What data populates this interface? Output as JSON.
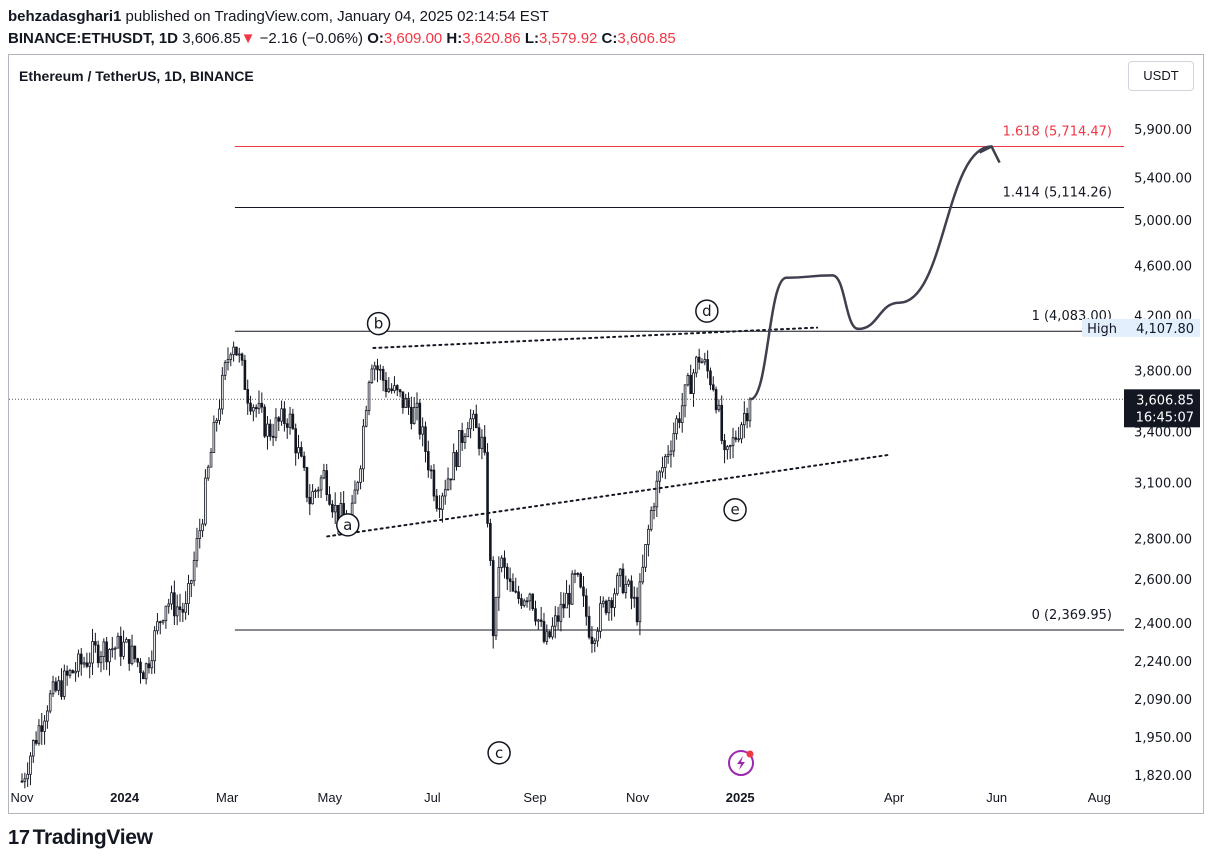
{
  "header": {
    "user": "behzadasghari1",
    "published_text": "published on TradingView.com, January 04, 2025 02:14:54 EST",
    "symbol": "BINANCE:ETHUSDT, 1D",
    "last": "3,606.85",
    "down_arrow": "▼",
    "change": "−2.16 (−0.06%)",
    "o_label": "O:",
    "o_value": "3,609.00",
    "h_label": "H:",
    "h_value": "3,620.86",
    "l_label": "L:",
    "l_value": "3,579.92",
    "c_label": "C:",
    "c_value": "3,606.85"
  },
  "chart_title": "Ethereum / TetherUS, 1D, BINANCE",
  "currency_button": "USDT",
  "logo": {
    "mark": "17",
    "text": "TradingView"
  },
  "colors": {
    "text": "#131722",
    "red": "#f23645",
    "price_box": "#131722",
    "high_box": "#e3effd",
    "border": "#b2b5be"
  },
  "chart_data": {
    "type": "candlestick",
    "title": "Ethereum / TetherUS, 1D, BINANCE",
    "scale": "log",
    "y_ticks": [
      5900,
      5400,
      5000,
      4600,
      4200,
      3800,
      3400,
      3100,
      2800,
      2600,
      2400,
      2240,
      2090,
      1950,
      1820
    ],
    "y_tick_labels": [
      "5,900.00",
      "5,400.00",
      "5,000.00",
      "4,600.00",
      "4,200.00",
      "3,800.00",
      "3,400.00",
      "3,100.00",
      "2,800.00",
      "2,600.00",
      "2,400.00",
      "2,240.00",
      "2,090.00",
      "1,950.00",
      "1,820.00"
    ],
    "x_ticks": [
      {
        "label": "Nov",
        "t": 0,
        "bold": false
      },
      {
        "label": "2024",
        "t": 2,
        "bold": true
      },
      {
        "label": "Mar",
        "t": 4,
        "bold": false
      },
      {
        "label": "May",
        "t": 6,
        "bold": false
      },
      {
        "label": "Jul",
        "t": 8,
        "bold": false
      },
      {
        "label": "Sep",
        "t": 10,
        "bold": false
      },
      {
        "label": "Nov",
        "t": 12,
        "bold": false
      },
      {
        "label": "2025",
        "t": 14,
        "bold": true
      },
      {
        "label": "Apr",
        "t": 17,
        "bold": false
      },
      {
        "label": "Jun",
        "t": 19,
        "bold": false
      },
      {
        "label": "Aug",
        "t": 21,
        "bold": false
      }
    ],
    "price_path": [
      [
        0,
        1800
      ],
      [
        0.5,
        2080
      ],
      [
        1.0,
        2200
      ],
      [
        1.5,
        2290
      ],
      [
        2.0,
        2300
      ],
      [
        2.4,
        2200
      ],
      [
        2.8,
        2500
      ],
      [
        3.2,
        2450
      ],
      [
        3.5,
        2900
      ],
      [
        3.8,
        3500
      ],
      [
        4.1,
        4050
      ],
      [
        4.4,
        3650
      ],
      [
        4.8,
        3400
      ],
      [
        5.2,
        3500
      ],
      [
        5.6,
        3000
      ],
      [
        5.9,
        3150
      ],
      [
        6.1,
        2950
      ],
      [
        6.4,
        2850
      ],
      [
        6.6,
        3250
      ],
      [
        6.8,
        3900
      ],
      [
        7.1,
        3700
      ],
      [
        7.4,
        3600
      ],
      [
        7.7,
        3500
      ],
      [
        8.1,
        3000
      ],
      [
        8.4,
        3200
      ],
      [
        8.7,
        3500
      ],
      [
        9.0,
        3300
      ],
      [
        9.2,
        2300
      ],
      [
        9.3,
        2700
      ],
      [
        9.6,
        2500
      ],
      [
        9.9,
        2550
      ],
      [
        10.2,
        2300
      ],
      [
        10.5,
        2450
      ],
      [
        10.8,
        2600
      ],
      [
        11.1,
        2350
      ],
      [
        11.4,
        2500
      ],
      [
        11.7,
        2600
      ],
      [
        12.0,
        2450
      ],
      [
        12.3,
        3000
      ],
      [
        12.6,
        3300
      ],
      [
        12.9,
        3600
      ],
      [
        13.2,
        3900
      ],
      [
        13.5,
        3700
      ],
      [
        13.7,
        3200
      ],
      [
        14.0,
        3450
      ],
      [
        14.2,
        3606.85
      ]
    ],
    "fib_levels": [
      {
        "ratio": "1.618",
        "price": 5714.47,
        "label": "1.618 (5,714.47)",
        "color": "#f23645"
      },
      {
        "ratio": "1.414",
        "price": 5114.26,
        "label": "1.414 (5,114.26)",
        "color": "#131722"
      },
      {
        "ratio": "1",
        "price": 4083.0,
        "label": "1 (4,083.00)",
        "color": "#131722"
      },
      {
        "ratio": "0",
        "price": 2369.95,
        "label": "0 (2,369.95)",
        "color": "#131722"
      }
    ],
    "fib_start_t": 4.15,
    "wave_labels": [
      {
        "label": "a",
        "t": 6.35,
        "price": 2870,
        "point_t": 5.95,
        "point_price": 2810
      },
      {
        "label": "b",
        "t": 6.95,
        "price": 4140,
        "point_t": 6.85,
        "point_price": 3960
      },
      {
        "label": "c",
        "t": 9.3,
        "price": 1895,
        "point_t": 9.25,
        "point_price": 2120
      },
      {
        "label": "d",
        "t": 13.35,
        "price": 4235,
        "point_t": 13.45,
        "point_price": 4100
      },
      {
        "label": "e",
        "t": 13.9,
        "price": 2950,
        "point_t": 13.75,
        "point_price": 3090
      }
    ],
    "trendlines": [
      {
        "from": [
          6.85,
          3960
        ],
        "to": [
          15.5,
          4110
        ],
        "style": "dotted"
      },
      {
        "from": [
          5.95,
          2810
        ],
        "to": [
          16.9,
          3260
        ],
        "style": "dotted"
      }
    ],
    "projection": [
      [
        14.2,
        3606.85
      ],
      [
        14.9,
        4500
      ],
      [
        15.8,
        4520
      ],
      [
        16.3,
        4100
      ],
      [
        17.1,
        4300
      ],
      [
        18.9,
        5714.47
      ]
    ],
    "current_price": {
      "label": "3,606.85",
      "countdown": "16:45:07",
      "value": 3606.85
    },
    "high_marker": {
      "tag": "High",
      "label": "4,107.80",
      "value": 4107.8
    }
  }
}
